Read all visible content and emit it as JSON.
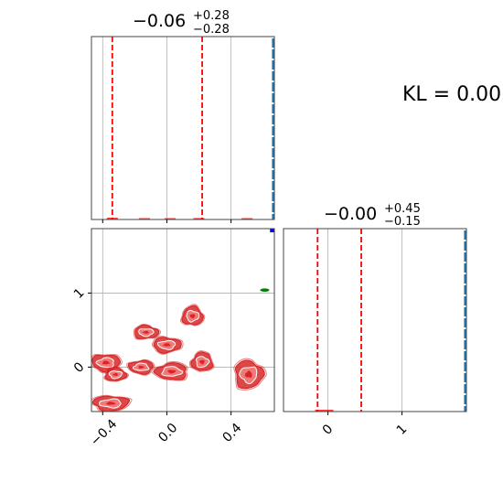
{
  "chart_data": {
    "type": "corner",
    "kl_label": "KL = 0.00",
    "colors": {
      "quantile_line": "#ff0000",
      "contour": "#d62728",
      "truth_line": "#1f77b4",
      "marker_blue": "#0000ff",
      "marker_green": "#008000",
      "grid": "#b0b0b0"
    },
    "panels": [
      {
        "id": "hist-x",
        "type": "histogram",
        "title": {
          "median": "−0.06",
          "plus": "+0.28",
          "minus": "−0.28"
        },
        "xlim": [
          -0.47,
          0.67
        ],
        "quantile_lines": [
          -0.34,
          0.22
        ],
        "truth_value": 0.67,
        "gridlines_x": [
          -0.4,
          0.0,
          0.4
        ],
        "bins": [
          {
            "x": -0.34,
            "h": 0.01
          },
          {
            "x": -0.14,
            "h": 0.006
          },
          {
            "x": 0.02,
            "h": 0.006
          },
          {
            "x": 0.2,
            "h": 0.008
          },
          {
            "x": 0.5,
            "h": 0.004
          }
        ]
      },
      {
        "id": "hist-y",
        "type": "histogram",
        "title": {
          "median": "−0.00",
          "plus": "+0.45",
          "minus": "−0.15"
        },
        "xlim": [
          -0.6,
          1.87
        ],
        "quantile_lines": [
          -0.14,
          0.45
        ],
        "truth_value": 1.87,
        "gridlines_x": [
          0,
          1
        ],
        "x_ticks": [
          "0",
          "1"
        ],
        "bins": [
          {
            "x": -0.05,
            "h": 0.01
          }
        ]
      },
      {
        "id": "scatter-xy",
        "type": "contour",
        "xlim": [
          -0.47,
          0.67
        ],
        "ylim": [
          -0.6,
          1.87
        ],
        "x_ticks": [
          "−0.4",
          "0.0",
          "0.4"
        ],
        "y_ticks": [
          "0",
          "1"
        ],
        "gridlines_x": [
          -0.4,
          0.0,
          0.4
        ],
        "gridlines_y": [
          0,
          1
        ],
        "blobs": [
          {
            "x": 0.16,
            "y": 0.69
          },
          {
            "x": -0.13,
            "y": 0.47
          },
          {
            "x": 0.0,
            "y": 0.3
          },
          {
            "x": -0.38,
            "y": 0.06
          },
          {
            "x": -0.16,
            "y": 0.0
          },
          {
            "x": 0.03,
            "y": -0.06
          },
          {
            "x": 0.22,
            "y": 0.07
          },
          {
            "x": -0.32,
            "y": -0.1
          },
          {
            "x": 0.51,
            "y": -0.1
          },
          {
            "x": -0.35,
            "y": -0.49
          }
        ],
        "marker_blue": {
          "x": 0.66,
          "y": 1.87
        },
        "marker_green": {
          "x": 0.61,
          "y": 1.04
        }
      }
    ]
  }
}
